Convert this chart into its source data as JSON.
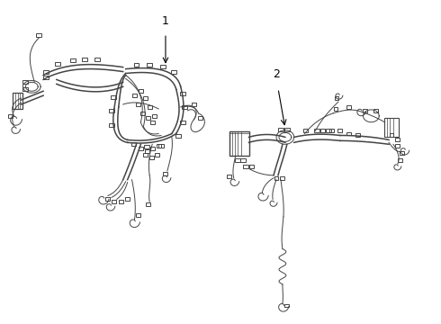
{
  "background_color": "#ffffff",
  "line_color": "#444444",
  "line_width": 1.1,
  "thin_lw": 0.7,
  "label1": "1",
  "label2": "2",
  "figsize": [
    4.9,
    3.6
  ],
  "dpi": 100
}
